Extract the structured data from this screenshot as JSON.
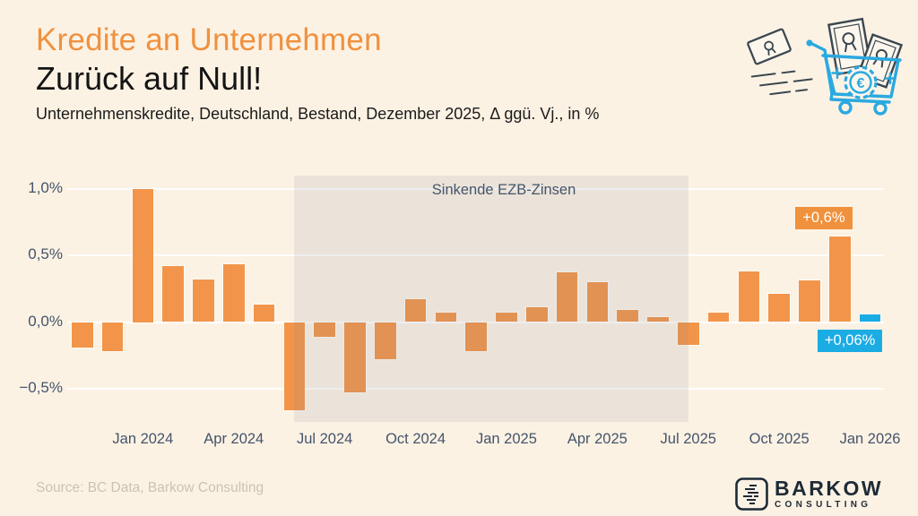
{
  "header": {
    "title": "Kredite an Unternehmen",
    "headline": "Zurück auf Null!",
    "subtitle": "Unternehmenskredite, Deutschland, Bestand, Dezember 2025, Δ ggü. Vj., in %"
  },
  "chart_data": {
    "type": "bar",
    "title": "Unternehmenskredite Deutschland, Bestand, Δ ggü. Vj. in %",
    "x": [
      "Nov 2023",
      "Dec 2023",
      "Jan 2024",
      "Feb 2024",
      "Mar 2024",
      "Apr 2024",
      "May 2024",
      "Jun 2024",
      "Jul 2024",
      "Aug 2024",
      "Sep 2024",
      "Oct 2024",
      "Nov 2024",
      "Dec 2024",
      "Jan 2025",
      "Feb 2025",
      "Mar 2025",
      "Apr 2025",
      "May 2025",
      "Jun 2025",
      "Jul 2025",
      "Aug 2025",
      "Sep 2025",
      "Oct 2025",
      "Nov 2025",
      "Dec 2025",
      "Jan 2026"
    ],
    "values": [
      -0.19,
      -0.22,
      1.0,
      0.42,
      0.32,
      0.43,
      0.13,
      -0.66,
      -0.11,
      -0.53,
      -0.28,
      0.17,
      0.07,
      -0.22,
      0.07,
      0.11,
      0.37,
      0.3,
      0.09,
      0.04,
      -0.17,
      0.07,
      0.38,
      0.21,
      0.31,
      0.64,
      0.06
    ],
    "ylim": [
      -0.75,
      1.1
    ],
    "y_ticks": [
      "1,0%",
      "0,5%",
      "0,0%",
      "−0,5%"
    ],
    "y_tick_values": [
      1.0,
      0.5,
      0.0,
      -0.5
    ],
    "x_ticks": [
      "Jan 2024",
      "Apr 2024",
      "Jul 2024",
      "Oct 2024",
      "Jan 2025",
      "Apr 2025",
      "Jul 2025",
      "Oct 2025",
      "Jan 2026"
    ],
    "bar_color": "#F2954A",
    "highlight_color": "#1BACE4",
    "highlight_index": 26,
    "grid": true,
    "shaded_region": {
      "label": "Sinkende EZB-Zinsen",
      "from": "Jun 2024",
      "to": "Jul 2025"
    },
    "annotations": [
      {
        "text": "+0,6%",
        "bar": "Dec 2025",
        "style": "orange"
      },
      {
        "text": "+0,06%",
        "bar": "Jan 2026",
        "style": "blue"
      }
    ]
  },
  "illustration": {
    "name": "banknotes-flying-into-shopping-cart",
    "euro_symbol": "€"
  },
  "footer": {
    "source": "Source: BC Data, Barkow Consulting",
    "logo_name": "BARKOW",
    "logo_sub": "CONSULTING"
  }
}
